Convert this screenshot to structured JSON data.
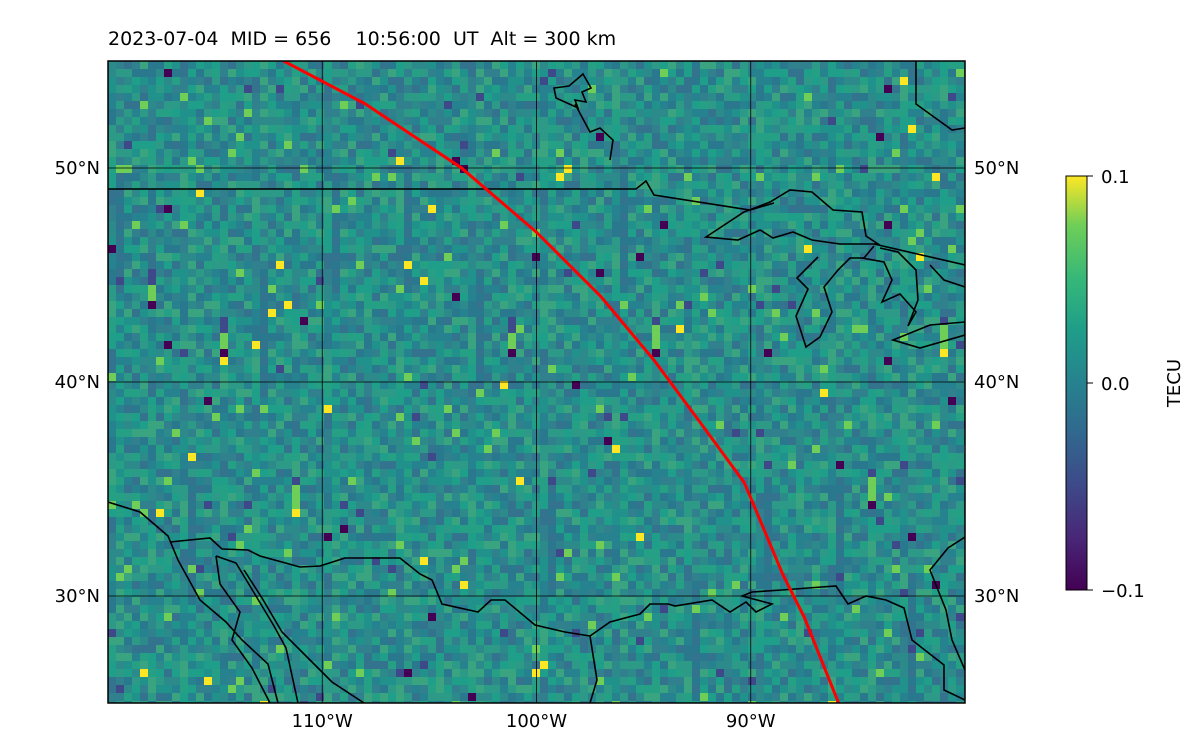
{
  "title": "2023-07-04  MID = 656    10:56:00  UT  Alt = 300 km",
  "map": {
    "lon_range": [
      -120,
      -80
    ],
    "lat_range": [
      25,
      55
    ],
    "lon_ticks": [
      {
        "value": -110,
        "label": "110°W"
      },
      {
        "value": -100,
        "label": "100°W"
      },
      {
        "value": -90,
        "label": "90°W"
      }
    ],
    "lat_ticks": [
      {
        "value": 50,
        "label": "50°N"
      },
      {
        "value": 40,
        "label": "40°N"
      },
      {
        "value": 30,
        "label": "30°N"
      }
    ],
    "gridlines": true,
    "field": "TEC perturbation",
    "colormap": "viridis",
    "track_color": "#ff0000",
    "track": [
      [
        -111.8,
        55
      ],
      [
        -108,
        53
      ],
      [
        -103.5,
        50
      ],
      [
        -100,
        47
      ],
      [
        -97,
        44
      ],
      [
        -94.5,
        41
      ],
      [
        -92.5,
        38.3
      ],
      [
        -90.3,
        35.3
      ],
      [
        -88.5,
        31
      ],
      [
        -87.5,
        29
      ],
      [
        -85.9,
        25
      ]
    ]
  },
  "colorbar": {
    "label": "TECU",
    "min": -0.1,
    "max": 0.1,
    "ticks": [
      {
        "value": 0.1,
        "label": "0.1"
      },
      {
        "value": 0.0,
        "label": "0.0"
      },
      {
        "value": -0.1,
        "label": "−0.1"
      }
    ]
  }
}
